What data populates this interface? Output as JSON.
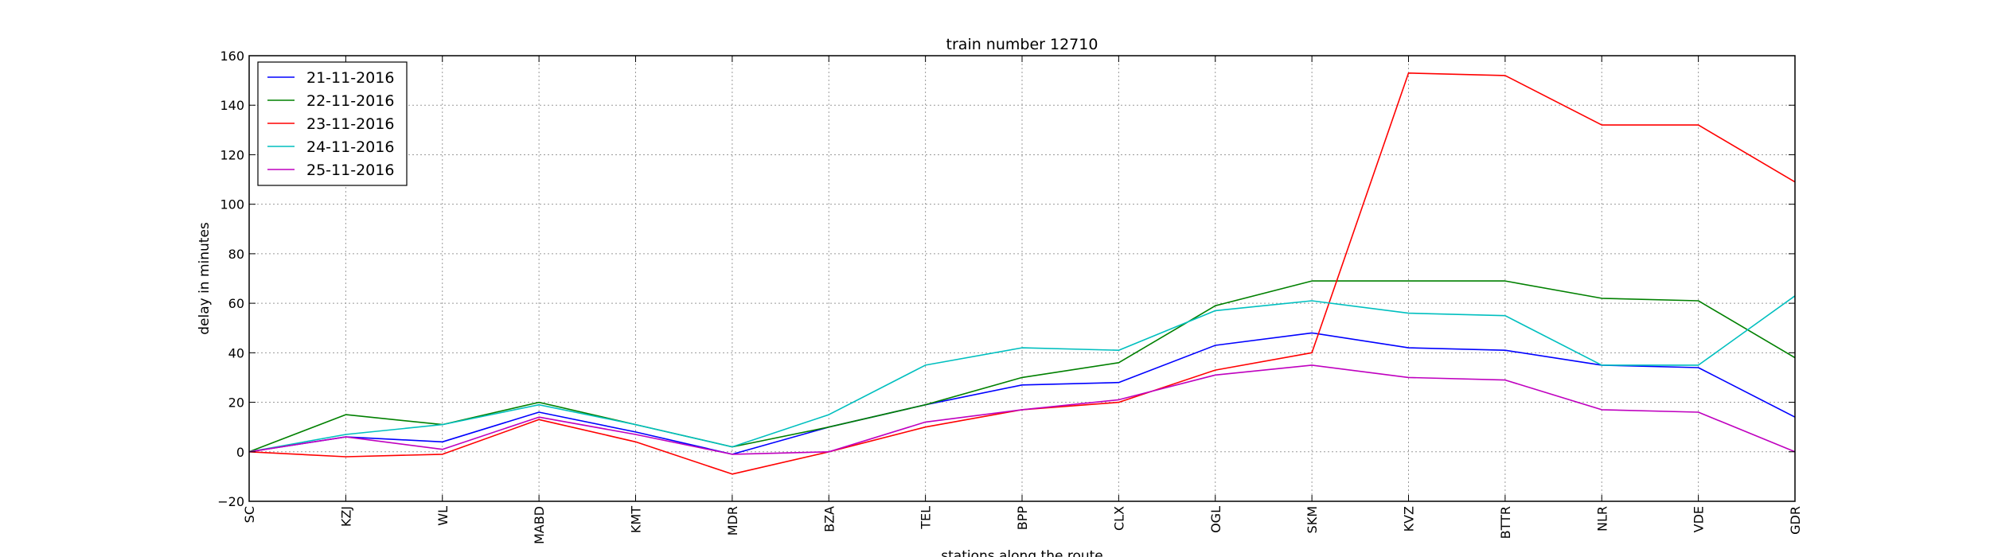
{
  "chart_data": {
    "type": "line",
    "title": "train number 12710",
    "xlabel": "stations along the route",
    "ylabel": "delay in minutes",
    "ylim": [
      -20,
      160
    ],
    "yticks": [
      -20,
      0,
      20,
      40,
      60,
      80,
      100,
      120,
      140,
      160
    ],
    "grid": true,
    "legend_position": "top-left",
    "categories": [
      "SC",
      "KZJ",
      "WL",
      "MABD",
      "KMT",
      "MDR",
      "BZA",
      "TEL",
      "BPP",
      "CLX",
      "OGL",
      "SKM",
      "KVZ",
      "BTTR",
      "NLR",
      "VDE",
      "GDR"
    ],
    "series": [
      {
        "name": "21-11-2016",
        "color": "#0000ff",
        "values": [
          0,
          6,
          4,
          16,
          8,
          -1,
          10,
          19,
          27,
          28,
          43,
          48,
          42,
          41,
          35,
          34,
          14
        ]
      },
      {
        "name": "22-11-2016",
        "color": "#008000",
        "values": [
          0,
          15,
          11,
          20,
          11,
          2,
          10,
          19,
          30,
          36,
          59,
          69,
          69,
          69,
          62,
          61,
          38
        ]
      },
      {
        "name": "23-11-2016",
        "color": "#ff0000",
        "values": [
          0,
          -2,
          -1,
          13,
          4,
          -9,
          0,
          10,
          17,
          20,
          33,
          40,
          153,
          152,
          132,
          132,
          109
        ]
      },
      {
        "name": "24-11-2016",
        "color": "#00bfbf",
        "values": [
          0,
          7,
          11,
          19,
          11,
          2,
          15,
          35,
          42,
          41,
          57,
          61,
          56,
          55,
          35,
          35,
          63
        ]
      },
      {
        "name": "25-11-2016",
        "color": "#bf00bf",
        "values": [
          0,
          6,
          1,
          14,
          7,
          -1,
          0,
          12,
          17,
          21,
          31,
          35,
          30,
          29,
          17,
          16,
          0
        ]
      }
    ]
  }
}
